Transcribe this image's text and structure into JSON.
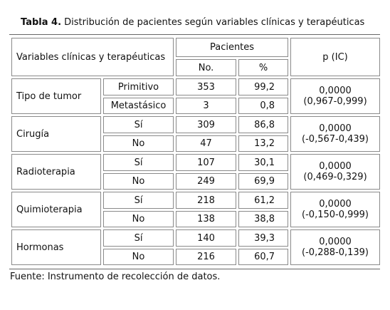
{
  "caption": {
    "label": "Tabla 4.",
    "text": "Distribución de pacientes según variables clínicas y terapéuticas"
  },
  "header": {
    "variables": "Variables clínicas y terapéuticas",
    "pacientes": "Pacientes",
    "no": "No.",
    "pct": "%",
    "p_ic": "p (IC)"
  },
  "groups": [
    {
      "name": "Tipo de tumor",
      "p": "0,0000",
      "ic": "(0,967-0,999)",
      "rows": [
        {
          "category": "Primitivo",
          "no": "353",
          "pct": "99,2"
        },
        {
          "category": "Metastásico",
          "no": "3",
          "pct": "0,8"
        }
      ]
    },
    {
      "name": "Cirugía",
      "p": "0,0000",
      "ic": "(-0,567-0,439)",
      "rows": [
        {
          "category": "Sí",
          "no": "309",
          "pct": "86,8"
        },
        {
          "category": "No",
          "no": "47",
          "pct": "13,2"
        }
      ]
    },
    {
      "name": "Radioterapia",
      "p": "0,0000",
      "ic": "(0,469-0,329)",
      "rows": [
        {
          "category": "Sí",
          "no": "107",
          "pct": "30,1"
        },
        {
          "category": "No",
          "no": "249",
          "pct": "69,9"
        }
      ]
    },
    {
      "name": "Quimioterapia",
      "p": "0,0000",
      "ic": "(-0,150-0,999)",
      "rows": [
        {
          "category": "Sí",
          "no": "218",
          "pct": "61,2"
        },
        {
          "category": "No",
          "no": "138",
          "pct": "38,8"
        }
      ]
    },
    {
      "name": "Hormonas",
      "p": "0,0000",
      "ic": "(-0,288-0,139)",
      "rows": [
        {
          "category": "Sí",
          "no": "140",
          "pct": "39,3"
        },
        {
          "category": "No",
          "no": "216",
          "pct": "60,7"
        }
      ]
    }
  ],
  "source": "Fuente: Instrumento de recolección de datos."
}
